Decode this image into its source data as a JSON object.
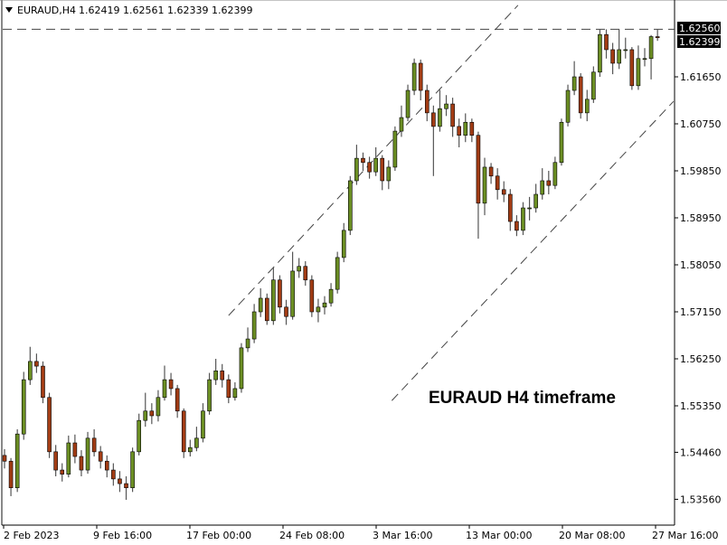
{
  "header": {
    "symbol_label": "EURAUD,H4",
    "ohlc_label": "1.62419 1.62561 1.62339 1.62399",
    "menu_icon": "triangle-down-icon"
  },
  "annotation": "EURAUD H4 timeframe",
  "chart_data": {
    "type": "candlestick",
    "symbol": "EURAUD",
    "timeframe": "H4",
    "ylim": [
      1.531,
      1.631
    ],
    "y_ticks": [
      "1.61650",
      "1.60750",
      "1.59850",
      "1.58950",
      "1.58050",
      "1.57150",
      "1.56250",
      "1.55350",
      "1.54460",
      "1.53560"
    ],
    "x_ticks": [
      "2 Feb 2023",
      "9 Feb 16:00",
      "17 Feb 00:00",
      "24 Feb 08:00",
      "3 Mar 16:00",
      "13 Mar 00:00",
      "20 Mar 08:00",
      "27 Mar 16:00"
    ],
    "ask_price_label": "1.62560",
    "bid_price_label": "1.62399",
    "colors": {
      "bull": "#6b8e23",
      "bear": "#a23c14",
      "outline": "#000000",
      "wick": "#555555"
    },
    "horizontal_line_price": 1.6256,
    "trendlines": [
      {
        "from": [
          35,
          1.5708
        ],
        "to": [
          80.2,
          1.6302
        ]
      },
      {
        "from": [
          60.5,
          1.5545
        ],
        "to": [
          104.5,
          1.6118
        ]
      }
    ],
    "candles": [
      [
        1.544,
        1.5452,
        1.5415,
        1.5429
      ],
      [
        1.5429,
        1.5435,
        1.5362,
        1.5378
      ],
      [
        1.5378,
        1.549,
        1.537,
        1.5481
      ],
      [
        1.5481,
        1.56,
        1.547,
        1.5585
      ],
      [
        1.5585,
        1.5648,
        1.5575,
        1.562
      ],
      [
        1.562,
        1.5635,
        1.5598,
        1.5611
      ],
      [
        1.5611,
        1.562,
        1.554,
        1.5551
      ],
      [
        1.5551,
        1.556,
        1.5435,
        1.5447
      ],
      [
        1.5447,
        1.546,
        1.54,
        1.5412
      ],
      [
        1.5412,
        1.5425,
        1.539,
        1.5404
      ],
      [
        1.5404,
        1.5478,
        1.5398,
        1.5464
      ],
      [
        1.5464,
        1.548,
        1.5425,
        1.5438
      ],
      [
        1.5438,
        1.545,
        1.54,
        1.5412
      ],
      [
        1.5412,
        1.5485,
        1.5405,
        1.5473
      ],
      [
        1.5473,
        1.549,
        1.5438,
        1.5447
      ],
      [
        1.5447,
        1.5458,
        1.5415,
        1.5429
      ],
      [
        1.5429,
        1.544,
        1.5398,
        1.5412
      ],
      [
        1.5412,
        1.5425,
        1.5382,
        1.5395
      ],
      [
        1.5395,
        1.541,
        1.537,
        1.5386
      ],
      [
        1.5386,
        1.54,
        1.5355,
        1.5378
      ],
      [
        1.5378,
        1.5455,
        1.537,
        1.5447
      ],
      [
        1.5447,
        1.552,
        1.544,
        1.5507
      ],
      [
        1.5507,
        1.556,
        1.5495,
        1.5525
      ],
      [
        1.5525,
        1.554,
        1.55,
        1.5516
      ],
      [
        1.5516,
        1.5565,
        1.5505,
        1.5551
      ],
      [
        1.5551,
        1.5612,
        1.5545,
        1.5585
      ],
      [
        1.5585,
        1.5598,
        1.5555,
        1.5568
      ],
      [
        1.5568,
        1.5575,
        1.5512,
        1.5525
      ],
      [
        1.5525,
        1.553,
        1.5435,
        1.5447
      ],
      [
        1.5447,
        1.547,
        1.5438,
        1.5455
      ],
      [
        1.5455,
        1.5495,
        1.5448,
        1.5473
      ],
      [
        1.5473,
        1.554,
        1.5465,
        1.5525
      ],
      [
        1.5525,
        1.5598,
        1.5518,
        1.5585
      ],
      [
        1.5585,
        1.5625,
        1.5575,
        1.5602
      ],
      [
        1.5602,
        1.5615,
        1.557,
        1.5585
      ],
      [
        1.5585,
        1.5595,
        1.554,
        1.5551
      ],
      [
        1.5551,
        1.558,
        1.5545,
        1.5568
      ],
      [
        1.5568,
        1.5655,
        1.556,
        1.5646
      ],
      [
        1.5646,
        1.5685,
        1.5638,
        1.5663
      ],
      [
        1.5663,
        1.573,
        1.5655,
        1.5715
      ],
      [
        1.5715,
        1.576,
        1.5705,
        1.5741
      ],
      [
        1.5741,
        1.575,
        1.569,
        1.5698
      ],
      [
        1.5698,
        1.58,
        1.569,
        1.5776
      ],
      [
        1.5776,
        1.5785,
        1.5712,
        1.5724
      ],
      [
        1.5724,
        1.5738,
        1.569,
        1.5706
      ],
      [
        1.5706,
        1.583,
        1.57,
        1.5793
      ],
      [
        1.5793,
        1.5818,
        1.578,
        1.5802
      ],
      [
        1.5802,
        1.5812,
        1.5765,
        1.5776
      ],
      [
        1.5776,
        1.5785,
        1.5705,
        1.5715
      ],
      [
        1.5715,
        1.574,
        1.5695,
        1.5724
      ],
      [
        1.5724,
        1.5745,
        1.571,
        1.5732
      ],
      [
        1.5732,
        1.577,
        1.5725,
        1.5758
      ],
      [
        1.5758,
        1.583,
        1.575,
        1.5819
      ],
      [
        1.5819,
        1.5885,
        1.581,
        1.5871
      ],
      [
        1.5871,
        1.5975,
        1.5862,
        1.5966
      ],
      [
        1.5966,
        1.6035,
        1.5958,
        1.6009
      ],
      [
        1.6009,
        1.602,
        1.5985,
        1.6001
      ],
      [
        1.6001,
        1.6012,
        1.597,
        1.5983
      ],
      [
        1.5983,
        1.603,
        1.5975,
        1.6009
      ],
      [
        1.6009,
        1.6015,
        1.5948,
        1.5966
      ],
      [
        1.5966,
        1.6005,
        1.595,
        1.5992
      ],
      [
        1.5992,
        1.607,
        1.5985,
        1.6061
      ],
      [
        1.6061,
        1.611,
        1.605,
        1.6087
      ],
      [
        1.6087,
        1.615,
        1.608,
        1.6139
      ],
      [
        1.6139,
        1.62,
        1.613,
        1.6191
      ],
      [
        1.6191,
        1.6198,
        1.612,
        1.6139
      ],
      [
        1.6139,
        1.615,
        1.608,
        1.6096
      ],
      [
        1.6096,
        1.611,
        1.5975,
        1.607
      ],
      [
        1.607,
        1.614,
        1.606,
        1.6104
      ],
      [
        1.6104,
        1.613,
        1.609,
        1.6113
      ],
      [
        1.6113,
        1.6125,
        1.605,
        1.607
      ],
      [
        1.607,
        1.6085,
        1.603,
        1.6053
      ],
      [
        1.6053,
        1.6095,
        1.604,
        1.6078
      ],
      [
        1.6078,
        1.6085,
        1.604,
        1.6053
      ],
      [
        1.6053,
        1.606,
        1.5855,
        1.5923
      ],
      [
        1.5923,
        1.601,
        1.59,
        1.5992
      ],
      [
        1.5992,
        1.6,
        1.596,
        1.5975
      ],
      [
        1.5975,
        1.599,
        1.593,
        1.5949
      ],
      [
        1.5949,
        1.5965,
        1.5925,
        1.594
      ],
      [
        1.594,
        1.595,
        1.587,
        1.5888
      ],
      [
        1.5888,
        1.59,
        1.586,
        1.5871
      ],
      [
        1.5871,
        1.5925,
        1.5862,
        1.5914
      ],
      [
        1.5914,
        1.5935,
        1.589,
        1.5914
      ],
      [
        1.5914,
        1.596,
        1.5905,
        1.594
      ],
      [
        1.594,
        1.599,
        1.593,
        1.5966
      ],
      [
        1.5966,
        1.5985,
        1.594,
        1.5957
      ],
      [
        1.5957,
        1.6012,
        1.595,
        1.6001
      ],
      [
        1.6001,
        1.6085,
        1.5995,
        1.6078
      ],
      [
        1.6078,
        1.615,
        1.607,
        1.6139
      ],
      [
        1.6139,
        1.6195,
        1.613,
        1.6165
      ],
      [
        1.6165,
        1.6172,
        1.6085,
        1.6096
      ],
      [
        1.6096,
        1.614,
        1.608,
        1.6122
      ],
      [
        1.6122,
        1.6185,
        1.6115,
        1.6174
      ],
      [
        1.6174,
        1.6256,
        1.6165,
        1.6246
      ],
      [
        1.6246,
        1.6256,
        1.62,
        1.6217
      ],
      [
        1.6217,
        1.623,
        1.617,
        1.6191
      ],
      [
        1.6191,
        1.6256,
        1.618,
        1.6217
      ],
      [
        1.6217,
        1.624,
        1.62,
        1.6217
      ],
      [
        1.6217,
        1.6222,
        1.614,
        1.6148
      ],
      [
        1.6148,
        1.6225,
        1.614,
        1.62
      ],
      [
        1.62,
        1.622,
        1.6185,
        1.62
      ],
      [
        1.62,
        1.6245,
        1.616,
        1.6242
      ],
      [
        1.62419,
        1.62561,
        1.62339,
        1.62399
      ]
    ]
  }
}
